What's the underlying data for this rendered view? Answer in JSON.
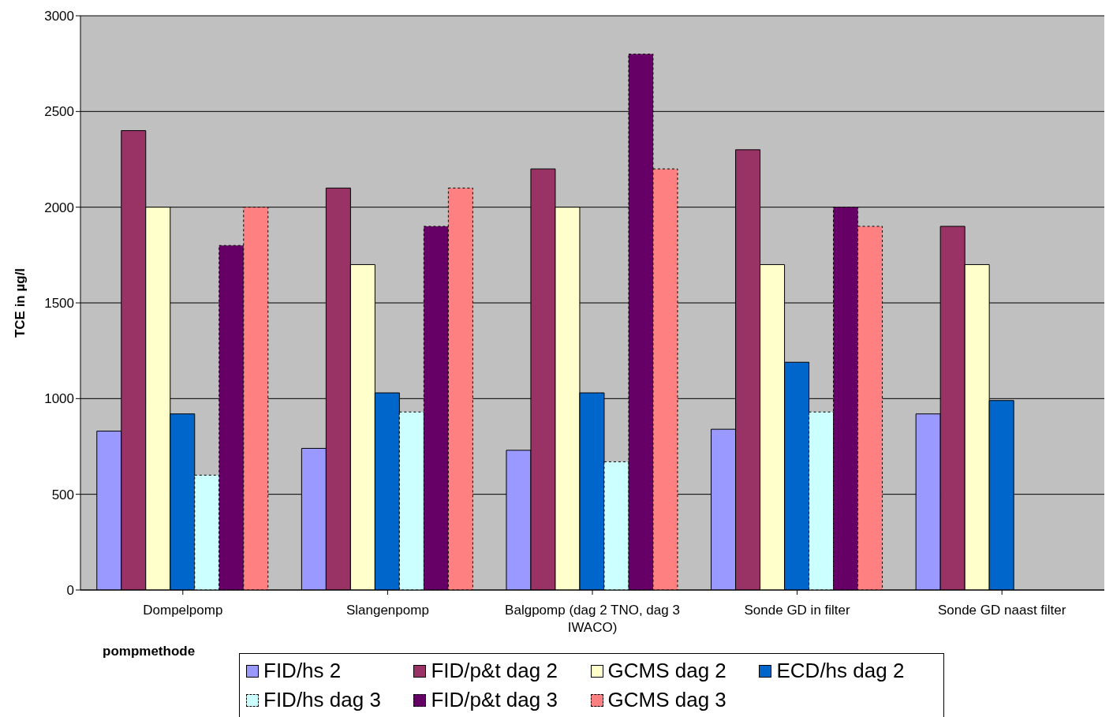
{
  "chart_data": {
    "type": "bar",
    "ylabel": "TCE in µg/l",
    "xlabel": "pompmethode",
    "categories": [
      "Dompelpomp",
      "Slangenpomp",
      "Balgpomp (dag 2 TNO, dag 3 IWACO)",
      "Sonde GD in filter",
      "Sonde GD naast filter"
    ],
    "series": [
      {
        "name": "FID/hs 2",
        "color": "#9999ff",
        "values": [
          830,
          740,
          730,
          840,
          920
        ]
      },
      {
        "name": "FID/p&t dag 2",
        "color": "#993366",
        "values": [
          2400,
          2100,
          2200,
          2300,
          1900
        ]
      },
      {
        "name": "GCMS dag 2",
        "color": "#ffffcc",
        "values": [
          2000,
          1700,
          2000,
          1700,
          1700
        ]
      },
      {
        "name": "ECD/hs dag 2",
        "color": "#0066cc",
        "values": [
          920,
          1030,
          1030,
          1190,
          990
        ]
      },
      {
        "name": "FID/hs dag 3",
        "color": "#ccffff",
        "line_style": "dashed",
        "values": [
          600,
          930,
          670,
          930,
          null
        ]
      },
      {
        "name": "FID/p&t dag 3",
        "color": "#660066",
        "line_style": "dashed",
        "values": [
          1800,
          1900,
          2800,
          2000,
          null
        ]
      },
      {
        "name": "GCMS dag 3",
        "color": "#ff8080",
        "line_style": "dashed",
        "values": [
          2000,
          2100,
          2200,
          1900,
          null
        ]
      }
    ],
    "ylim": [
      0,
      3000
    ],
    "yticks": [
      0,
      500,
      1000,
      1500,
      2000,
      2500,
      3000
    ],
    "grid": "y",
    "legend": "bottom"
  }
}
